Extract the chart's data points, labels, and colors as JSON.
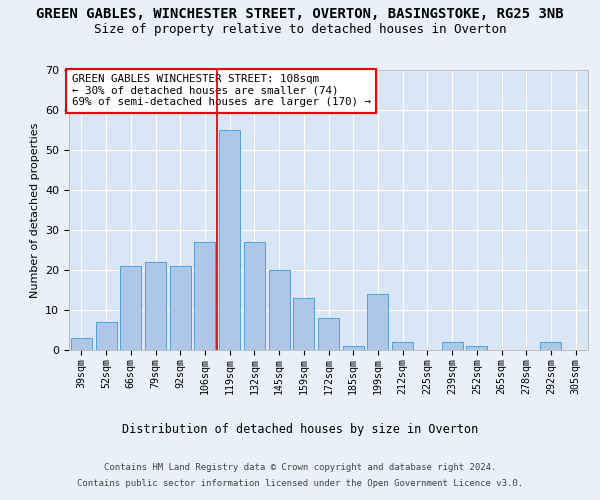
{
  "title1": "GREEN GABLES, WINCHESTER STREET, OVERTON, BASINGSTOKE, RG25 3NB",
  "title2": "Size of property relative to detached houses in Overton",
  "xlabel": "Distribution of detached houses by size in Overton",
  "ylabel": "Number of detached properties",
  "categories": [
    "39sqm",
    "52sqm",
    "66sqm",
    "79sqm",
    "92sqm",
    "106sqm",
    "119sqm",
    "132sqm",
    "145sqm",
    "159sqm",
    "172sqm",
    "185sqm",
    "199sqm",
    "212sqm",
    "225sqm",
    "239sqm",
    "252sqm",
    "265sqm",
    "278sqm",
    "292sqm",
    "305sqm"
  ],
  "values": [
    3,
    7,
    21,
    22,
    21,
    27,
    55,
    27,
    20,
    13,
    8,
    1,
    14,
    2,
    0,
    2,
    1,
    0,
    0,
    2,
    0
  ],
  "bar_color": "#aec6e8",
  "bar_edge_color": "#5a9fd4",
  "vline_x": 5.5,
  "vline_color": "#cc0000",
  "ylim": [
    0,
    70
  ],
  "yticks": [
    0,
    10,
    20,
    30,
    40,
    50,
    60,
    70
  ],
  "annotation_line1": "GREEN GABLES WINCHESTER STREET: 108sqm",
  "annotation_line2": "← 30% of detached houses are smaller (74)",
  "annotation_line3": "69% of semi-detached houses are larger (170) →",
  "footer1": "Contains HM Land Registry data © Crown copyright and database right 2024.",
  "footer2": "Contains public sector information licensed under the Open Government Licence v3.0.",
  "bg_color": "#eaf0f8",
  "plot_bg_color": "#d8e6f5",
  "title1_fontsize": 10,
  "title2_fontsize": 9
}
